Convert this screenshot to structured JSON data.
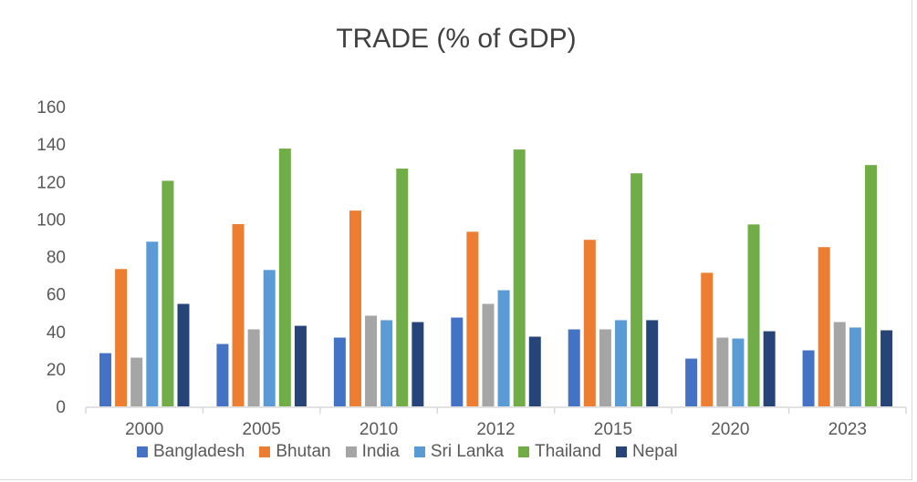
{
  "chart_data": {
    "type": "bar",
    "title": "TRADE (% of GDP)",
    "xlabel": "",
    "ylabel": "",
    "ylim": [
      0,
      160
    ],
    "yticks": [
      0,
      20,
      40,
      60,
      80,
      100,
      120,
      140,
      160
    ],
    "grid": false,
    "legend_position": "bottom",
    "categories": [
      "2000",
      "2005",
      "2010",
      "2012",
      "2015",
      "2020",
      "2023"
    ],
    "series": [
      {
        "name": "Bangladesh",
        "color": "#4472c4",
        "values": [
          28.4,
          33.3,
          36.7,
          47.4,
          41.1,
          25.5,
          29.9
        ]
      },
      {
        "name": "Bhutan",
        "color": "#ed7d31",
        "values": [
          73.3,
          97.3,
          104.5,
          93.2,
          88.9,
          71.3,
          85.0
        ]
      },
      {
        "name": "India",
        "color": "#a5a5a5",
        "values": [
          26.0,
          41.1,
          48.4,
          54.7,
          41.1,
          36.7,
          45.0
        ]
      },
      {
        "name": "Sri Lanka",
        "color": "#5b9bd5",
        "values": [
          87.9,
          72.8,
          46.0,
          62.0,
          46.0,
          36.2,
          42.1
        ]
      },
      {
        "name": "Thailand",
        "color": "#70ad47",
        "values": [
          120.4,
          137.6,
          126.9,
          137.1,
          124.4,
          97.1,
          128.8
        ]
      },
      {
        "name": "Nepal",
        "color": "#264478",
        "values": [
          54.7,
          43.0,
          45.0,
          37.2,
          46.0,
          40.1,
          40.6
        ]
      }
    ]
  }
}
